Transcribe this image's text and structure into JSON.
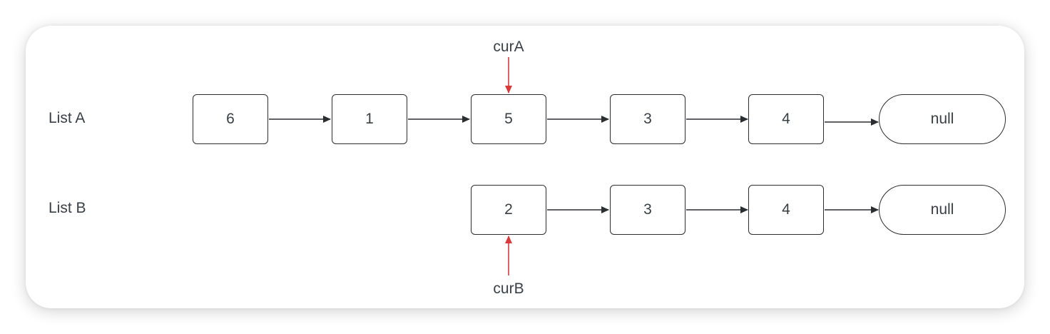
{
  "lists": {
    "a": {
      "label": "List A",
      "nodes": [
        "6",
        "1",
        "5",
        "3",
        "4"
      ],
      "terminal": "null"
    },
    "b": {
      "label": "List B",
      "nodes": [
        "2",
        "3",
        "4"
      ],
      "terminal": "null"
    }
  },
  "pointers": {
    "cur_a": "curA",
    "cur_b": "curB"
  },
  "colors": {
    "pointer_arrow": "#d93a3a",
    "link_arrow": "#2b2d31"
  }
}
